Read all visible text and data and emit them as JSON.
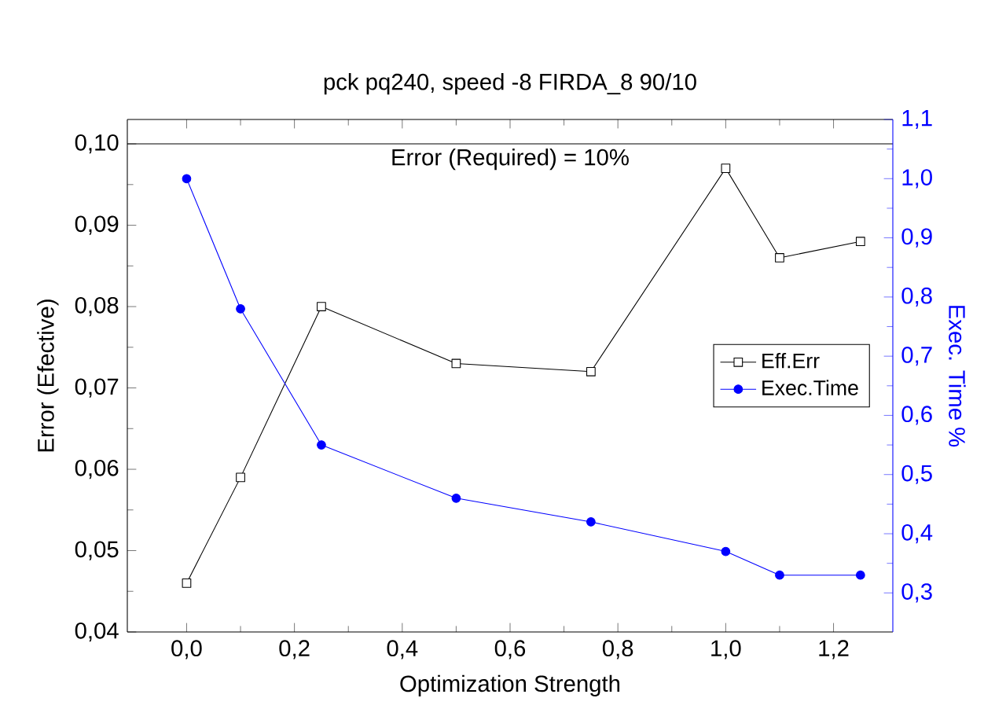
{
  "chart_data": {
    "type": "line",
    "title": "pck pq240, speed -8    FIRDA_8    90/10",
    "xlabel": "Optimization Strength",
    "ylabel": "Error (Efective)",
    "y2label": "Exec. Time %",
    "x": [
      0,
      0.1,
      0.25,
      0.5,
      0.75,
      1.0,
      1.1,
      1.25
    ],
    "series": [
      {
        "name": "Eff.Err",
        "color": "#000000",
        "marker": "square",
        "values": [
          0.046,
          0.059,
          0.08,
          0.073,
          0.072,
          0.097,
          0.086,
          0.088
        ]
      },
      {
        "name": "Exec.Time",
        "color": "#0000ff",
        "marker": "circle",
        "axis": "y2",
        "values": [
          1.0,
          0.78,
          0.55,
          0.46,
          0.42,
          0.37,
          0.33,
          0.33
        ]
      }
    ],
    "xlim": [
      -0.11,
      1.31
    ],
    "ylim": [
      0.04,
      0.103
    ],
    "y2lim": [
      0.234,
      1.1
    ],
    "xticks": [
      {
        "value": 0,
        "label": "0,0"
      },
      {
        "value": 0.2,
        "label": "0,2"
      },
      {
        "value": 0.4,
        "label": "0,4"
      },
      {
        "value": 0.6,
        "label": "0,6"
      },
      {
        "value": 0.8,
        "label": "0,8"
      },
      {
        "value": 1.0,
        "label": "1,0"
      },
      {
        "value": 1.2,
        "label": "1,2"
      }
    ],
    "yticks": [
      {
        "value": 0.04,
        "label": "0,04"
      },
      {
        "value": 0.05,
        "label": "0,05"
      },
      {
        "value": 0.06,
        "label": "0,06"
      },
      {
        "value": 0.07,
        "label": "0,07"
      },
      {
        "value": 0.08,
        "label": "0,08"
      },
      {
        "value": 0.09,
        "label": "0,09"
      },
      {
        "value": 0.1,
        "label": "0,10"
      }
    ],
    "y2ticks": [
      {
        "value": 0.3,
        "label": "0,3"
      },
      {
        "value": 0.4,
        "label": "0,4"
      },
      {
        "value": 0.5,
        "label": "0,5"
      },
      {
        "value": 0.6,
        "label": "0,6"
      },
      {
        "value": 0.7,
        "label": "0,7"
      },
      {
        "value": 0.8,
        "label": "0,8"
      },
      {
        "value": 0.9,
        "label": "0,9"
      },
      {
        "value": 1.0,
        "label": "1,0"
      },
      {
        "value": 1.1,
        "label": "1,1"
      }
    ],
    "ref_lines": [
      {
        "axis": "y",
        "value": 0.1,
        "label": "Error (Required) = 10%",
        "color": "#000000"
      }
    ],
    "line_style": "solid",
    "grid": false,
    "legend": "right"
  }
}
